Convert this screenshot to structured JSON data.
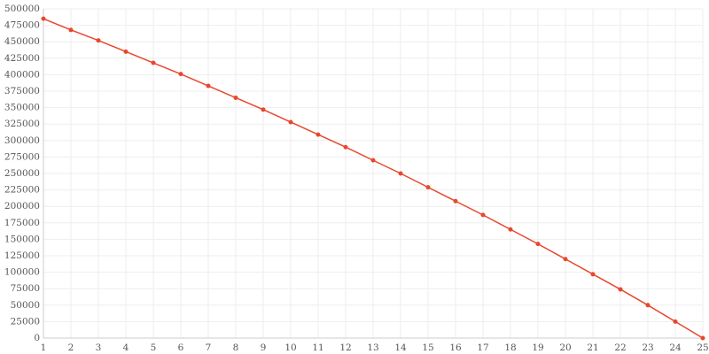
{
  "chart_data": {
    "type": "line",
    "categories": [
      "1",
      "2",
      "3",
      "4",
      "5",
      "6",
      "7",
      "8",
      "9",
      "10",
      "11",
      "12",
      "13",
      "14",
      "15",
      "16",
      "17",
      "18",
      "19",
      "20",
      "21",
      "22",
      "23",
      "24",
      "25"
    ],
    "series": [
      {
        "color": "#e8472e",
        "values": [
          485000,
          468000,
          452000,
          435000,
          418000,
          401000,
          383000,
          365000,
          347000,
          328000,
          309000,
          290000,
          270000,
          250000,
          229000,
          208000,
          187000,
          165000,
          143000,
          120000,
          97000,
          74000,
          50000,
          25000,
          0
        ]
      }
    ],
    "ylim": [
      0,
      500000
    ],
    "yticks": [
      0,
      25000,
      50000,
      75000,
      100000,
      125000,
      150000,
      175000,
      200000,
      225000,
      250000,
      275000,
      300000,
      325000,
      350000,
      375000,
      400000,
      425000,
      450000,
      475000,
      500000
    ],
    "grid": true
  }
}
